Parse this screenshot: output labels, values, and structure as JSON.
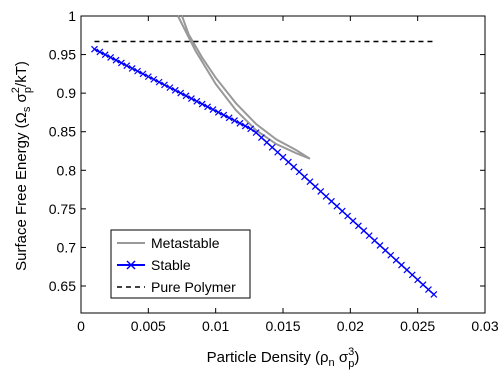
{
  "chart_data": {
    "type": "line",
    "xlabel": {
      "main": "Particle Density (ρ",
      "n": "n",
      "sigma": " σ",
      "sup": "3",
      "sub": "p",
      "close": ")"
    },
    "ylabel": {
      "main": "Surface Free Energy (Ω",
      "s": "s",
      "sigma": " σ",
      "sup": "2",
      "sub": "p",
      "close": "/kT)"
    },
    "xlim": [
      0,
      0.03
    ],
    "ylim": [
      0.615,
      1.0
    ],
    "x_ticks": [
      "0",
      "0.005",
      "0.01",
      "0.015",
      "0.02",
      "0.025",
      "0.03"
    ],
    "y_ticks": [
      "0.65",
      "0.7",
      "0.75",
      "0.8",
      "0.85",
      "0.9",
      "0.95",
      "1"
    ],
    "x_tick_values": [
      0,
      0.005,
      0.01,
      0.015,
      0.02,
      0.025,
      0.03
    ],
    "y_tick_values": [
      0.65,
      0.7,
      0.75,
      0.8,
      0.85,
      0.9,
      0.95,
      1.0
    ],
    "grid": false,
    "legend_position": "bottom-left",
    "series": [
      {
        "name": "Metastable",
        "color": "#999999",
        "marker": "none",
        "x": [
          0.0072,
          0.0085,
          0.01,
          0.0115,
          0.013,
          0.0145,
          0.016,
          0.017,
          0.016,
          0.0145,
          0.013,
          0.0115,
          0.01,
          0.009,
          0.008,
          0.0075
        ],
        "y": [
          1.0,
          0.955,
          0.912,
          0.878,
          0.852,
          0.834,
          0.822,
          0.815,
          0.826,
          0.84,
          0.86,
          0.887,
          0.92,
          0.946,
          0.976,
          1.0
        ]
      },
      {
        "name": "Stable",
        "color": "#0000ff",
        "marker": "x",
        "x_start": 0.001,
        "x_end": 0.0262,
        "x_knee": 0.0128,
        "y_start": 0.957,
        "y_knee": 0.852,
        "y_end": 0.639
      },
      {
        "name": "Pure Polymer",
        "color": "#000000",
        "marker": "none",
        "dash": "dashed",
        "x": [
          0.001,
          0.0262
        ],
        "y": [
          0.967,
          0.967
        ]
      }
    ]
  }
}
